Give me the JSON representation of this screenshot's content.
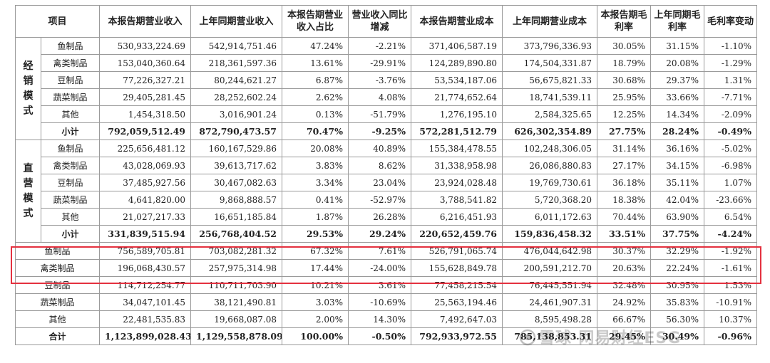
{
  "headers": [
    "项目",
    "本报告期营业收入",
    "上年同期营业收入",
    "本报告期营业收入占比",
    "营业收入同比增减",
    "本报告期营业成本",
    "上年同期营业成本",
    "本报告期毛利率",
    "上年同期毛利率",
    "毛利率变动"
  ],
  "groups": [
    {
      "category": "经销模式",
      "rows": [
        [
          "鱼制品",
          "530,933,224.69",
          "542,914,751.46",
          "47.24%",
          "-2.21%",
          "371,406,587.19",
          "373,796,336.93",
          "30.05%",
          "31.15%",
          "-1.10%"
        ],
        [
          "禽类制品",
          "153,040,360.64",
          "218,361,597.36",
          "13.61%",
          "-29.91%",
          "124,289,890.80",
          "174,504,331.87",
          "18.79%",
          "20.08%",
          "-1.29%"
        ],
        [
          "豆制品",
          "77,226,327.21",
          "80,244,621.27",
          "6.87%",
          "-3.76%",
          "53,534,187.06",
          "56,675,821.33",
          "30.68%",
          "29.37%",
          "1.31%"
        ],
        [
          "蔬菜制品",
          "29,405,281.45",
          "28,252,602.24",
          "2.62%",
          "4.08%",
          "21,774,652.64",
          "18,741,539.11",
          "25.95%",
          "33.66%",
          "-7.71%"
        ],
        [
          "其他",
          "1,454,318.50",
          "3,016,901.24",
          "0.13%",
          "-51.79%",
          "1,276,195.10",
          "2,584,325.65",
          "12.25%",
          "14.34%",
          "-2.09%"
        ]
      ],
      "subtotal": [
        "小计",
        "792,059,512.49",
        "872,790,473.57",
        "70.47%",
        "-9.25%",
        "572,281,512.79",
        "626,302,354.89",
        "27.75%",
        "28.24%",
        "-0.49%"
      ]
    },
    {
      "category": "直营模式",
      "rows": [
        [
          "鱼制品",
          "225,656,481.12",
          "160,167,529.86",
          "20.08%",
          "40.89%",
          "155,384,478.55",
          "102,248,306.05",
          "31.14%",
          "36.16%",
          "-5.02%"
        ],
        [
          "禽类制品",
          "43,028,069.93",
          "39,613,717.62",
          "3.83%",
          "8.62%",
          "31,338,958.98",
          "26,086,880.83",
          "27.17%",
          "34.15%",
          "-6.98%"
        ],
        [
          "豆制品",
          "37,485,927.56",
          "30,467,082.63",
          "3.34%",
          "23.04%",
          "23,924,028.48",
          "19,769,730.61",
          "36.18%",
          "35.11%",
          "1.07%"
        ],
        [
          "蔬菜制品",
          "4,641,820.00",
          "9,868,888.57",
          "0.41%",
          "-52.97%",
          "3,788,541.82",
          "5,720,368.20",
          "18.38%",
          "42.04%",
          "-23.66%"
        ],
        [
          "其他",
          "21,027,217.33",
          "16,651,185.84",
          "1.87%",
          "26.28%",
          "6,216,451.93",
          "6,011,172.63",
          "70.44%",
          "63.90%",
          "6.54%"
        ]
      ],
      "subtotal": [
        "小计",
        "331,839,515.94",
        "256,768,404.52",
        "29.53%",
        "29.24%",
        "220,652,459.76",
        "159,836,458.32",
        "33.51%",
        "37.75%",
        "-4.24%"
      ]
    }
  ],
  "summary_rows": [
    [
      "鱼制品",
      "756,589,705.81",
      "703,082,281.32",
      "67.32%",
      "7.61%",
      "526,791,065.74",
      "476,044,642.98",
      "30.37%",
      "32.29%",
      "-1.92%"
    ],
    [
      "禽类制品",
      "196,068,430.57",
      "257,975,314.98",
      "17.44%",
      "-24.00%",
      "155,628,849.78",
      "200,591,212.70",
      "20.63%",
      "22.24%",
      "-1.61%"
    ],
    [
      "豆制品",
      "114,712,254.77",
      "110,711,703.90",
      "10.21%",
      "3.61%",
      "77,458,215.54",
      "76,445,551.94",
      "32.48%",
      "30.95%",
      "1.53%"
    ],
    [
      "蔬菜制品",
      "34,047,101.45",
      "38,121,490.81",
      "3.03%",
      "-10.69%",
      "25,563,194.46",
      "24,461,907.31",
      "24.92%",
      "35.83%",
      "-10.91%"
    ],
    [
      "其他",
      "22,481,535.83",
      "19,668,087.08",
      "2.00%",
      "14.30%",
      "7,492,647.03",
      "8,595,498.28",
      "66.67%",
      "56.30%",
      "10.37%"
    ]
  ],
  "total": [
    "合计",
    "1,123,899,028.43",
    "1,129,558,878.09",
    "100.00%",
    "-0.50%",
    "792,933,972.55",
    "785,138,853.31",
    "29.45%",
    "30.49%",
    "-0.96%"
  ],
  "watermark": "雪球·网易财经ESG",
  "colors": {
    "highlight_border": "#e4313f",
    "grid": "#9a9a9a",
    "text": "#222222"
  }
}
